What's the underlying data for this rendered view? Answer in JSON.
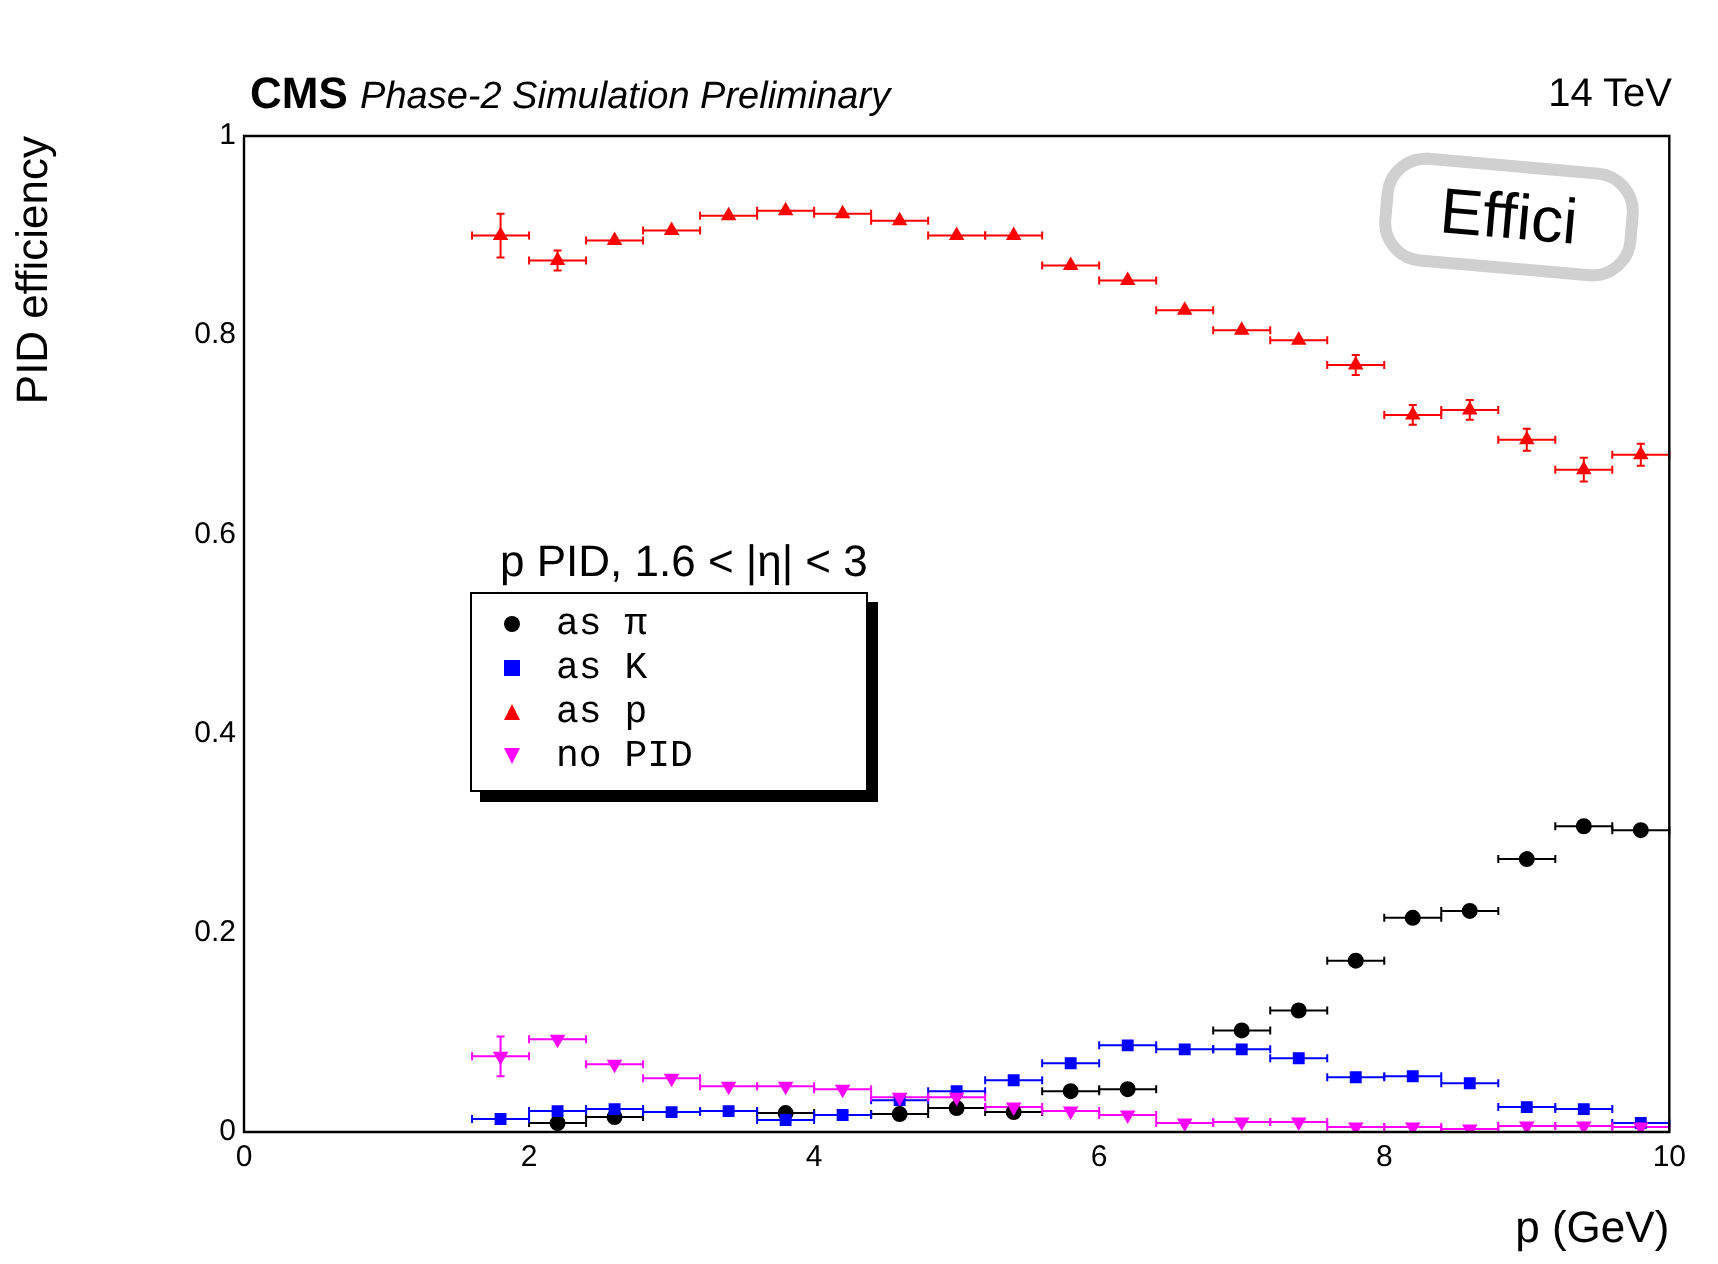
{
  "chart_data": {
    "type": "scatter",
    "title": "CMS",
    "subtitle": "Phase-2 Simulation Preliminary",
    "xlabel": "p (GeV)",
    "ylabel": "PID efficiency",
    "legend_title": "p PID, 1.6 < |η| < 3",
    "legend": "left",
    "annotations": [
      "14 TeV",
      "Effici"
    ],
    "x": [
      1.8,
      2.2,
      2.6,
      3.0,
      3.4,
      3.8,
      4.2,
      4.6,
      5.0,
      5.4,
      5.8,
      6.2,
      6.6,
      7.0,
      7.4,
      7.8,
      8.2,
      8.6,
      9.0,
      9.4,
      9.8
    ],
    "xlim": [
      0,
      10
    ],
    "xticks": [
      0,
      2,
      4,
      6,
      8,
      10
    ],
    "ylim": [
      0,
      1
    ],
    "yticks": [
      0,
      0.2,
      0.4,
      0.6,
      0.8,
      1
    ],
    "grid": false,
    "series": [
      {
        "name": "as π",
        "color": "#000000",
        "marker": "circle",
        "values": [
          null,
          0.009,
          0.015,
          null,
          null,
          0.019,
          null,
          0.018,
          0.024,
          0.02,
          0.041,
          0.043,
          null,
          0.102,
          0.122,
          0.172,
          0.215,
          0.222,
          0.274,
          0.307,
          0.303
        ],
        "xerrors": [
          null,
          0.2,
          0.2,
          null,
          null,
          0.2,
          null,
          0.2,
          0.2,
          0.2,
          0.2,
          0.2,
          null,
          0.2,
          0.2,
          0.2,
          0.2,
          0.2,
          0.2,
          0.2,
          0.2
        ]
      },
      {
        "name": "as K",
        "color": "#0000ff",
        "marker": "square",
        "values": [
          0.013,
          0.021,
          0.023,
          0.02,
          0.021,
          0.012,
          0.017,
          0.032,
          0.041,
          0.052,
          0.069,
          0.087,
          0.083,
          0.083,
          0.074,
          0.055,
          0.056,
          0.049,
          0.025,
          0.023,
          0.009
        ],
        "xerrors": [
          0.2,
          0.2,
          0.2,
          0.2,
          0.2,
          0.2,
          0.2,
          0.2,
          0.2,
          0.2,
          0.2,
          0.2,
          0.2,
          0.2,
          0.2,
          0.2,
          0.2,
          0.2,
          0.2,
          0.2,
          0.2
        ]
      },
      {
        "name": "as p",
        "color": "#ff0000",
        "marker": "triangle",
        "values": [
          0.9,
          0.875,
          0.895,
          0.905,
          0.92,
          0.925,
          0.922,
          0.915,
          0.9,
          0.9,
          0.87,
          0.855,
          0.825,
          0.805,
          0.795,
          0.77,
          0.72,
          0.725,
          0.695,
          0.665,
          0.68
        ],
        "xerrors": [
          0.2,
          0.2,
          0.2,
          0.2,
          0.2,
          0.2,
          0.2,
          0.2,
          0.2,
          0.2,
          0.2,
          0.2,
          0.2,
          0.2,
          0.2,
          0.2,
          0.2,
          0.2,
          0.2,
          0.2,
          0.2
        ],
        "errors": [
          0.022,
          0.01,
          null,
          null,
          null,
          null,
          null,
          null,
          null,
          null,
          null,
          null,
          null,
          null,
          null,
          0.01,
          0.01,
          0.01,
          0.011,
          0.012,
          0.011
        ]
      },
      {
        "name": "no PID",
        "color": "#ff00ff",
        "marker": "triangle_down",
        "values": [
          0.076,
          0.093,
          0.068,
          0.054,
          0.046,
          0.046,
          0.043,
          0.035,
          0.035,
          0.025,
          0.021,
          0.017,
          0.009,
          0.01,
          0.01,
          0.005,
          0.005,
          0.003,
          0.006,
          0.006,
          0.005
        ],
        "xerrors": [
          0.2,
          0.2,
          0.2,
          0.2,
          0.2,
          0.2,
          0.2,
          0.2,
          0.2,
          0.2,
          0.2,
          0.2,
          0.2,
          0.2,
          0.2,
          0.2,
          0.2,
          0.2,
          0.2,
          0.2,
          0.2
        ],
        "errors": [
          0.02,
          null,
          null,
          null,
          null,
          null,
          null,
          null,
          null,
          null,
          null,
          null,
          null,
          null,
          null,
          null,
          null,
          null,
          null,
          null,
          null
        ]
      }
    ]
  }
}
